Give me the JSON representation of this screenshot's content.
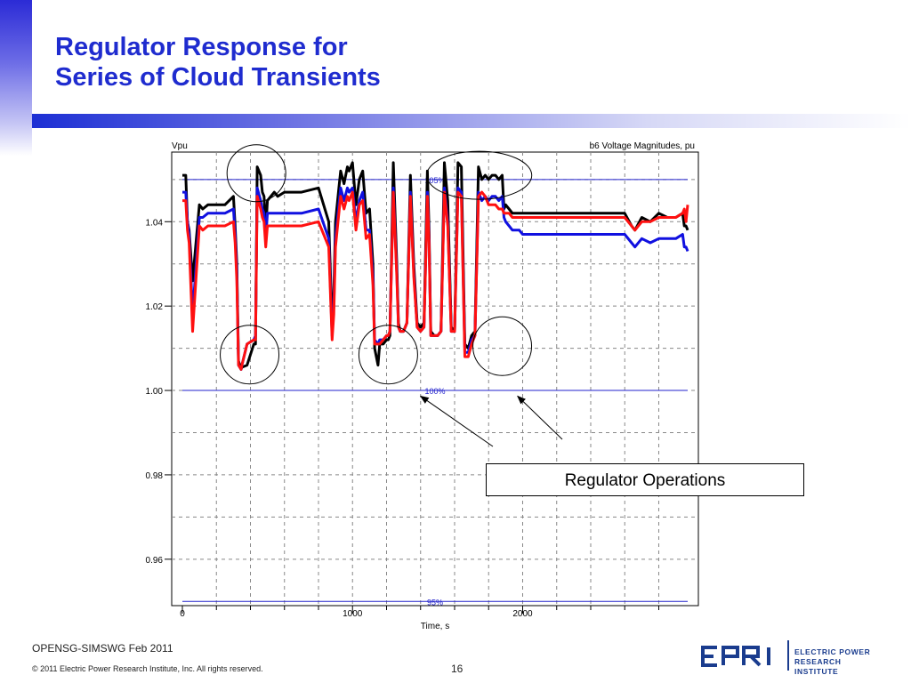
{
  "slide": {
    "title_line1": "Regulator Response for",
    "title_line2": "Series of Cloud Transients",
    "callout": "Regulator Operations",
    "footer_left": "OPENSG-SIMSWG Feb 2011",
    "copyright": "© 2011 Electric Power Research Institute, Inc. All rights reserved.",
    "page_number": "16",
    "logo_line1": "ELECTRIC POWER",
    "logo_line2": "RESEARCH INSTITUTE",
    "accent_color": "#1f2ccf"
  },
  "chart_data": {
    "type": "line",
    "title": "b6 Voltage Magnitudes, pu",
    "ylabel": "Vpu",
    "xlabel": "Time, s",
    "xlim": [
      0,
      2970
    ],
    "ylim": [
      0.949,
      1.0565
    ],
    "x_ticks": [
      0,
      1000,
      2000
    ],
    "y_ticks": [
      0.96,
      0.98,
      1.0,
      1.02,
      1.04
    ],
    "y_tick_labels": [
      "0.96",
      "0.98",
      "1.00",
      "1.02",
      "1.04"
    ],
    "grid": true,
    "reference_lines": [
      {
        "label": "105%",
        "y": 1.05
      },
      {
        "label": "100%",
        "y": 1.0
      },
      {
        "label": "95%",
        "y": 0.95
      }
    ],
    "series": [
      {
        "color": "#000000",
        "x": [
          0,
          20,
          30,
          40,
          60,
          100,
          120,
          150,
          200,
          250,
          300,
          310,
          320,
          330,
          345,
          350,
          380,
          420,
          430,
          440,
          460,
          470,
          480,
          490,
          500,
          520,
          540,
          560,
          600,
          700,
          800,
          860,
          880,
          890,
          900,
          920,
          930,
          950,
          970,
          980,
          1000,
          1020,
          1040,
          1060,
          1080,
          1100,
          1120,
          1130,
          1150,
          1160,
          1180,
          1200,
          1210,
          1220,
          1240,
          1260,
          1270,
          1280,
          1300,
          1320,
          1340,
          1360,
          1380,
          1400,
          1420,
          1440,
          1450,
          1460,
          1480,
          1500,
          1520,
          1540,
          1560,
          1580,
          1600,
          1620,
          1640,
          1660,
          1680,
          1700,
          1720,
          1740,
          1760,
          1780,
          1800,
          1820,
          1840,
          1860,
          1880,
          1890,
          1900,
          1920,
          1940,
          1980,
          2000,
          2100,
          2200,
          2300,
          2400,
          2500,
          2600,
          2640,
          2660,
          2700,
          2750,
          2800,
          2850,
          2900,
          2940,
          2950,
          2960,
          2970
        ],
        "y": [
          1.051,
          1.051,
          1.04,
          1.038,
          1.026,
          1.044,
          1.043,
          1.044,
          1.044,
          1.044,
          1.046,
          1.039,
          1.03,
          1.007,
          1.005,
          1.0055,
          1.006,
          1.011,
          1.011,
          1.053,
          1.051,
          1.047,
          1.046,
          1.038,
          1.045,
          1.046,
          1.047,
          1.046,
          1.047,
          1.047,
          1.048,
          1.04,
          1.016,
          1.023,
          1.04,
          1.048,
          1.052,
          1.049,
          1.053,
          1.052,
          1.054,
          1.044,
          1.05,
          1.052,
          1.042,
          1.043,
          1.03,
          1.01,
          1.006,
          1.011,
          1.011,
          1.012,
          1.012,
          1.013,
          1.054,
          1.03,
          1.016,
          1.014,
          1.014,
          1.016,
          1.051,
          1.03,
          1.016,
          1.015,
          1.016,
          1.052,
          1.038,
          1.014,
          1.013,
          1.013,
          1.014,
          1.054,
          1.045,
          1.015,
          1.014,
          1.054,
          1.053,
          1.011,
          1.01,
          1.013,
          1.014,
          1.053,
          1.05,
          1.051,
          1.05,
          1.051,
          1.051,
          1.05,
          1.051,
          1.043,
          1.044,
          1.043,
          1.042,
          1.042,
          1.042,
          1.042,
          1.042,
          1.042,
          1.042,
          1.042,
          1.042,
          1.039,
          1.038,
          1.041,
          1.04,
          1.042,
          1.041,
          1.041,
          1.042,
          1.039,
          1.039,
          1.038
        ]
      },
      {
        "color": "#1010e0",
        "x": [
          0,
          20,
          30,
          40,
          60,
          100,
          120,
          150,
          200,
          250,
          300,
          310,
          320,
          330,
          345,
          350,
          380,
          420,
          430,
          440,
          460,
          470,
          480,
          490,
          500,
          520,
          540,
          560,
          600,
          700,
          800,
          860,
          880,
          890,
          900,
          920,
          930,
          950,
          970,
          980,
          1000,
          1020,
          1040,
          1060,
          1080,
          1100,
          1120,
          1130,
          1150,
          1160,
          1180,
          1200,
          1210,
          1220,
          1240,
          1260,
          1270,
          1280,
          1300,
          1320,
          1340,
          1360,
          1380,
          1400,
          1420,
          1440,
          1450,
          1460,
          1480,
          1500,
          1520,
          1540,
          1560,
          1580,
          1600,
          1620,
          1640,
          1660,
          1680,
          1700,
          1720,
          1740,
          1760,
          1780,
          1800,
          1820,
          1840,
          1860,
          1880,
          1890,
          1900,
          1920,
          1940,
          1980,
          2000,
          2100,
          2200,
          2300,
          2400,
          2500,
          2600,
          2640,
          2660,
          2700,
          2750,
          2800,
          2850,
          2900,
          2940,
          2950,
          2960,
          2970
        ],
        "y": [
          1.047,
          1.047,
          1.04,
          1.037,
          1.018,
          1.041,
          1.041,
          1.042,
          1.042,
          1.042,
          1.043,
          1.037,
          1.028,
          1.006,
          1.005,
          1.006,
          1.011,
          1.012,
          1.013,
          1.048,
          1.045,
          1.043,
          1.042,
          1.036,
          1.042,
          1.042,
          1.042,
          1.042,
          1.042,
          1.042,
          1.043,
          1.036,
          1.013,
          1.02,
          1.036,
          1.044,
          1.048,
          1.045,
          1.048,
          1.047,
          1.048,
          1.04,
          1.045,
          1.047,
          1.038,
          1.038,
          1.027,
          1.012,
          1.011,
          1.012,
          1.012,
          1.013,
          1.013,
          1.014,
          1.048,
          1.028,
          1.015,
          1.014,
          1.014,
          1.016,
          1.047,
          1.028,
          1.015,
          1.014,
          1.015,
          1.047,
          1.036,
          1.013,
          1.013,
          1.013,
          1.014,
          1.048,
          1.04,
          1.014,
          1.014,
          1.048,
          1.047,
          1.009,
          1.009,
          1.012,
          1.013,
          1.047,
          1.045,
          1.046,
          1.045,
          1.046,
          1.046,
          1.045,
          1.046,
          1.041,
          1.04,
          1.039,
          1.038,
          1.038,
          1.037,
          1.037,
          1.037,
          1.037,
          1.037,
          1.037,
          1.037,
          1.035,
          1.034,
          1.036,
          1.035,
          1.036,
          1.036,
          1.036,
          1.037,
          1.034,
          1.034,
          1.033
        ]
      },
      {
        "color": "#ff1010",
        "x": [
          0,
          20,
          30,
          40,
          60,
          100,
          120,
          150,
          200,
          250,
          300,
          310,
          320,
          330,
          345,
          350,
          380,
          420,
          430,
          440,
          460,
          470,
          480,
          490,
          500,
          520,
          540,
          560,
          600,
          700,
          800,
          860,
          880,
          890,
          900,
          920,
          930,
          950,
          970,
          980,
          1000,
          1020,
          1040,
          1060,
          1080,
          1100,
          1120,
          1130,
          1150,
          1160,
          1180,
          1200,
          1210,
          1220,
          1240,
          1260,
          1270,
          1280,
          1300,
          1320,
          1340,
          1360,
          1380,
          1400,
          1420,
          1440,
          1450,
          1460,
          1480,
          1500,
          1520,
          1540,
          1560,
          1580,
          1600,
          1620,
          1640,
          1660,
          1680,
          1700,
          1720,
          1740,
          1760,
          1780,
          1800,
          1820,
          1840,
          1860,
          1880,
          1890,
          1900,
          1920,
          1940,
          1980,
          2000,
          2100,
          2200,
          2300,
          2400,
          2500,
          2600,
          2640,
          2660,
          2700,
          2750,
          2800,
          2850,
          2900,
          2940,
          2950,
          2960,
          2970
        ],
        "y": [
          1.045,
          1.045,
          1.038,
          1.035,
          1.014,
          1.039,
          1.038,
          1.039,
          1.039,
          1.039,
          1.04,
          1.035,
          1.026,
          1.006,
          1.005,
          1.006,
          1.011,
          1.012,
          1.012,
          1.046,
          1.043,
          1.041,
          1.04,
          1.034,
          1.039,
          1.039,
          1.039,
          1.039,
          1.039,
          1.039,
          1.04,
          1.034,
          1.012,
          1.018,
          1.034,
          1.042,
          1.046,
          1.043,
          1.046,
          1.045,
          1.047,
          1.038,
          1.044,
          1.045,
          1.036,
          1.037,
          1.025,
          1.011,
          1.011,
          1.011,
          1.012,
          1.013,
          1.013,
          1.014,
          1.047,
          1.027,
          1.015,
          1.014,
          1.014,
          1.016,
          1.046,
          1.027,
          1.015,
          1.014,
          1.015,
          1.046,
          1.035,
          1.013,
          1.013,
          1.013,
          1.014,
          1.047,
          1.039,
          1.014,
          1.014,
          1.047,
          1.046,
          1.008,
          1.008,
          1.011,
          1.013,
          1.046,
          1.047,
          1.046,
          1.044,
          1.044,
          1.044,
          1.043,
          1.043,
          1.042,
          1.042,
          1.042,
          1.041,
          1.041,
          1.041,
          1.041,
          1.041,
          1.041,
          1.041,
          1.041,
          1.041,
          1.039,
          1.038,
          1.04,
          1.04,
          1.041,
          1.041,
          1.041,
          1.042,
          1.043,
          1.04,
          1.044
        ]
      }
    ],
    "annotation_circles": [
      {
        "x": 435,
        "y": 1.0515
      },
      {
        "x": 1745,
        "y": 1.051
      },
      {
        "x": 395,
        "y": 1.0085
      },
      {
        "x": 1210,
        "y": 1.0085
      },
      {
        "x": 1880,
        "y": 1.0105
      }
    ],
    "arrows": [
      {
        "to_x": 1400,
        "to_y": 0.9995
      },
      {
        "to_x": 1970,
        "to_y": 0.9995
      }
    ]
  }
}
